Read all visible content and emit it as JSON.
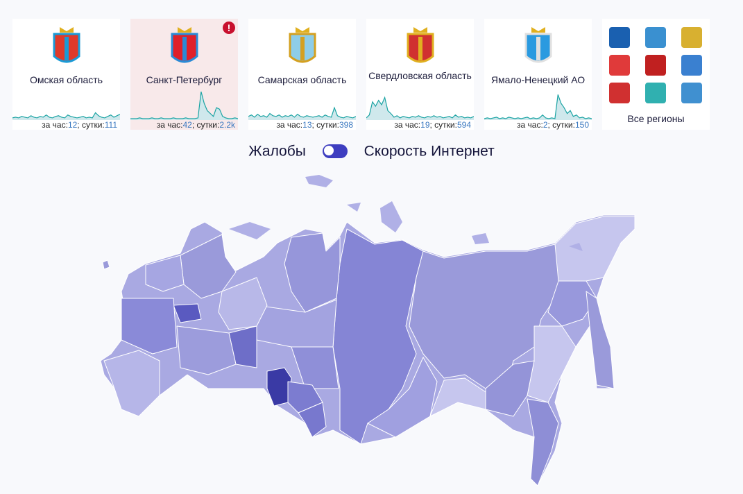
{
  "regions": [
    {
      "name": "Омская область",
      "hour": "12",
      "day": "111",
      "alert": false,
      "emblem_colors": [
        "#e03a2a",
        "#1a9ad6"
      ],
      "spark": [
        2,
        3,
        2,
        4,
        3,
        2,
        5,
        3,
        2,
        4,
        3,
        6,
        3,
        2,
        4,
        5,
        3,
        2,
        6,
        4,
        3,
        2,
        3,
        4,
        2,
        3,
        2,
        9,
        5,
        3,
        2,
        4,
        6,
        3,
        5,
        7
      ]
    },
    {
      "name": "Санкт-Петербург",
      "hour": "42",
      "day": "2.2k",
      "alert": true,
      "emblem_colors": [
        "#e0202a",
        "#2a8ad6"
      ],
      "spark": [
        1,
        1,
        1,
        2,
        1,
        1,
        1,
        2,
        1,
        1,
        2,
        1,
        1,
        1,
        2,
        1,
        1,
        1,
        2,
        1,
        1,
        1,
        2,
        38,
        22,
        12,
        8,
        4,
        16,
        14,
        4,
        2,
        1,
        1,
        2,
        1
      ]
    },
    {
      "name": "Самарская область",
      "hour": "13",
      "day": "398",
      "alert": false,
      "emblem_colors": [
        "#8ecde8",
        "#d4a020"
      ],
      "spark": [
        4,
        6,
        3,
        7,
        4,
        5,
        3,
        8,
        5,
        4,
        6,
        3,
        5,
        4,
        6,
        3,
        7,
        4,
        3,
        5,
        4,
        3,
        4,
        5,
        3,
        6,
        4,
        3,
        16,
        5,
        3,
        2,
        4,
        3,
        2,
        4
      ]
    },
    {
      "name": "Свердловская область",
      "hour": "19",
      "day": "594",
      "alert": false,
      "emblem_colors": [
        "#d03030",
        "#e0b020"
      ],
      "spark": [
        2,
        6,
        24,
        18,
        26,
        20,
        30,
        12,
        8,
        3,
        5,
        2,
        4,
        3,
        2,
        4,
        3,
        5,
        3,
        2,
        4,
        3,
        5,
        3,
        4,
        2,
        3,
        4,
        2,
        6,
        3,
        4,
        2,
        3,
        2,
        4
      ]
    },
    {
      "name": "Ямало-Ненецкий АО",
      "hour": "2",
      "day": "150",
      "alert": false,
      "emblem_colors": [
        "#2a9ae0",
        "#e0e0e0"
      ],
      "spark": [
        1,
        2,
        1,
        2,
        3,
        1,
        2,
        1,
        3,
        2,
        1,
        2,
        1,
        2,
        3,
        1,
        2,
        1,
        2,
        6,
        2,
        1,
        2,
        1,
        34,
        22,
        16,
        8,
        12,
        4,
        6,
        2,
        3,
        1,
        2,
        1
      ]
    }
  ],
  "stats": {
    "hour_label": "за час:",
    "day_label": "; сутки:"
  },
  "all_regions": {
    "label": "Все регионы",
    "emblem_colors": [
      "#1a60b0",
      "#3a90d0",
      "#d8b030",
      "#e03a3a",
      "#c02020",
      "#3a80d0",
      "#d03030",
      "#30b0b0",
      "#4090d0"
    ]
  },
  "toggle": {
    "left_label": "Жалобы",
    "right_label": "Скорость Интернет",
    "state": "right"
  },
  "colors": {
    "accent": "#3e3ec0",
    "spark": "#1aa3a3",
    "spark_fill": "#cfe8ec",
    "alert": "#c8102e",
    "map_dark": "#3a3aa5",
    "map_mid": "#8a8ad8",
    "map_light": "#c6c6ee"
  }
}
